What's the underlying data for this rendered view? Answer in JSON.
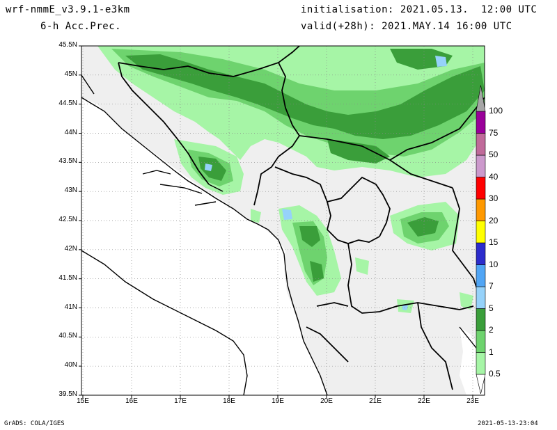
{
  "header": {
    "model": "wrf-nmmE_v3.9.1-e3km",
    "field": "6-h Acc.Prec.",
    "init": "initialisation: 2021.05.13.  12:00 UTC",
    "valid": "valid(+28h): 2021.MAY.14 16:00 UTC"
  },
  "axes": {
    "lat_labels": [
      "45.5N",
      "45N",
      "44.5N",
      "44N",
      "43.5N",
      "43N",
      "42.5N",
      "42N",
      "41.5N",
      "41N",
      "40.5N",
      "40N",
      "39.5N"
    ],
    "lon_labels": [
      "15E",
      "16E",
      "17E",
      "18E",
      "19E",
      "20E",
      "21E",
      "22E",
      "23E"
    ]
  },
  "legend": {
    "levels": [
      "0.5",
      "1",
      "2",
      "5",
      "7",
      "10",
      "15",
      "20",
      "30",
      "40",
      "50",
      "75",
      "100"
    ],
    "colors": [
      "#a6f5a6",
      "#6ed36e",
      "#3a9e3a",
      "#96d2fa",
      "#50a5f5",
      "#2c2ccc",
      "#ffff00",
      "#ff9900",
      "#ff0000",
      "#cc99cc",
      "#c06a9a",
      "#990099",
      "#a6a6a6"
    ]
  },
  "footer": {
    "left": "GrADS: COLA/IGES",
    "right": "2021-05-13-23:04"
  }
}
